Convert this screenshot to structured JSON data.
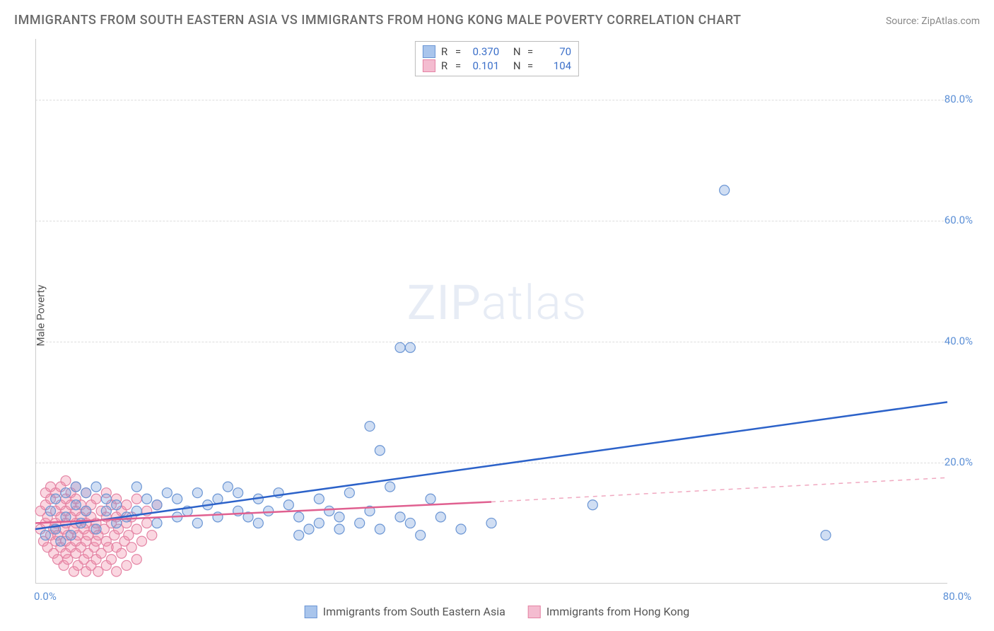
{
  "title": "IMMIGRANTS FROM SOUTH EASTERN ASIA VS IMMIGRANTS FROM HONG KONG MALE POVERTY CORRELATION CHART",
  "source_label": "Source: ZipAtlas.com",
  "y_axis_label": "Male Poverty",
  "watermark_zip": "ZIP",
  "watermark_atlas": "atlas",
  "chart": {
    "type": "scatter",
    "background_color": "#ffffff",
    "grid_color": "#dddddd",
    "axis_color": "#cccccc",
    "tick_color": "#5b8fd6",
    "xlim": [
      0,
      90
    ],
    "ylim": [
      0,
      90
    ],
    "y_ticks": [
      20,
      40,
      60,
      80
    ],
    "y_tick_labels": [
      "20.0%",
      "40.0%",
      "60.0%",
      "80.0%"
    ],
    "x_tick_left": "0.0%",
    "x_tick_right": "80.0%",
    "marker_radius": 7,
    "marker_stroke_width": 1.2,
    "trend_line_width": 2.5,
    "series": [
      {
        "key": "sea",
        "name": "Immigrants from South Eastern Asia",
        "fill": "rgba(120, 160, 220, 0.35)",
        "stroke": "#6a95d4",
        "swatch_fill": "#a9c5ec",
        "swatch_border": "#6a95d4",
        "r_value": "0.370",
        "n_value": "70",
        "trend": {
          "x1": 0,
          "y1": 9,
          "x2": 90,
          "y2": 30,
          "color": "#2c62c9",
          "dash": "none"
        },
        "points": [
          [
            1,
            8
          ],
          [
            1.5,
            12
          ],
          [
            2,
            9
          ],
          [
            2,
            14
          ],
          [
            2.5,
            7
          ],
          [
            3,
            11
          ],
          [
            3,
            15
          ],
          [
            3.5,
            8
          ],
          [
            4,
            13
          ],
          [
            4,
            16
          ],
          [
            4.5,
            10
          ],
          [
            5,
            12
          ],
          [
            5,
            15
          ],
          [
            6,
            9
          ],
          [
            6,
            16
          ],
          [
            7,
            12
          ],
          [
            7,
            14
          ],
          [
            8,
            10
          ],
          [
            8,
            13
          ],
          [
            9,
            11
          ],
          [
            10,
            12
          ],
          [
            10,
            16
          ],
          [
            11,
            14
          ],
          [
            12,
            10
          ],
          [
            12,
            13
          ],
          [
            13,
            15
          ],
          [
            14,
            11
          ],
          [
            14,
            14
          ],
          [
            15,
            12
          ],
          [
            16,
            10
          ],
          [
            16,
            15
          ],
          [
            17,
            13
          ],
          [
            18,
            11
          ],
          [
            18,
            14
          ],
          [
            19,
            16
          ],
          [
            20,
            12
          ],
          [
            20,
            15
          ],
          [
            21,
            11
          ],
          [
            22,
            10
          ],
          [
            22,
            14
          ],
          [
            23,
            12
          ],
          [
            24,
            15
          ],
          [
            25,
            13
          ],
          [
            26,
            8
          ],
          [
            26,
            11
          ],
          [
            27,
            9
          ],
          [
            28,
            14
          ],
          [
            28,
            10
          ],
          [
            29,
            12
          ],
          [
            30,
            9
          ],
          [
            30,
            11
          ],
          [
            31,
            15
          ],
          [
            32,
            10
          ],
          [
            33,
            26
          ],
          [
            33,
            12
          ],
          [
            34,
            22
          ],
          [
            34,
            9
          ],
          [
            35,
            16
          ],
          [
            36,
            11
          ],
          [
            36,
            39
          ],
          [
            37,
            39
          ],
          [
            37,
            10
          ],
          [
            38,
            8
          ],
          [
            39,
            14
          ],
          [
            40,
            11
          ],
          [
            42,
            9
          ],
          [
            45,
            10
          ],
          [
            55,
            13
          ],
          [
            68,
            65
          ],
          [
            78,
            8
          ]
        ]
      },
      {
        "key": "hk",
        "name": "Immigrants from Hong Kong",
        "fill": "rgba(240, 140, 170, 0.35)",
        "stroke": "#e484a4",
        "swatch_fill": "#f4bcd0",
        "swatch_border": "#e484a4",
        "r_value": "0.101",
        "n_value": "104",
        "trend_solid": {
          "x1": 0,
          "y1": 10,
          "x2": 45,
          "y2": 13.5,
          "color": "#e06090",
          "dash": "none"
        },
        "trend_dash": {
          "x1": 45,
          "y1": 13.5,
          "x2": 90,
          "y2": 17.5,
          "color": "#f0a8c0",
          "dash": "6,6"
        },
        "points": [
          [
            0.5,
            9
          ],
          [
            0.5,
            12
          ],
          [
            0.8,
            7
          ],
          [
            1,
            10
          ],
          [
            1,
            13
          ],
          [
            1,
            15
          ],
          [
            1.2,
            6
          ],
          [
            1.2,
            11
          ],
          [
            1.5,
            8
          ],
          [
            1.5,
            14
          ],
          [
            1.5,
            16
          ],
          [
            1.8,
            5
          ],
          [
            1.8,
            9
          ],
          [
            2,
            7
          ],
          [
            2,
            10
          ],
          [
            2,
            12
          ],
          [
            2,
            15
          ],
          [
            2.2,
            4
          ],
          [
            2.2,
            8
          ],
          [
            2.5,
            6
          ],
          [
            2.5,
            11
          ],
          [
            2.5,
            13
          ],
          [
            2.5,
            16
          ],
          [
            2.8,
            3
          ],
          [
            2.8,
            9
          ],
          [
            3,
            5
          ],
          [
            3,
            7
          ],
          [
            3,
            10
          ],
          [
            3,
            12
          ],
          [
            3,
            14
          ],
          [
            3,
            17
          ],
          [
            3.2,
            4
          ],
          [
            3.2,
            8
          ],
          [
            3.5,
            6
          ],
          [
            3.5,
            11
          ],
          [
            3.5,
            13
          ],
          [
            3.5,
            15
          ],
          [
            3.8,
            2
          ],
          [
            3.8,
            9
          ],
          [
            4,
            5
          ],
          [
            4,
            7
          ],
          [
            4,
            10
          ],
          [
            4,
            12
          ],
          [
            4,
            14
          ],
          [
            4,
            16
          ],
          [
            4.2,
            3
          ],
          [
            4.2,
            8
          ],
          [
            4.5,
            6
          ],
          [
            4.5,
            11
          ],
          [
            4.5,
            13
          ],
          [
            4.8,
            4
          ],
          [
            4.8,
            9
          ],
          [
            5,
            2
          ],
          [
            5,
            7
          ],
          [
            5,
            10
          ],
          [
            5,
            12
          ],
          [
            5,
            15
          ],
          [
            5.2,
            5
          ],
          [
            5.2,
            8
          ],
          [
            5.5,
            3
          ],
          [
            5.5,
            11
          ],
          [
            5.5,
            13
          ],
          [
            5.8,
            6
          ],
          [
            5.8,
            9
          ],
          [
            6,
            4
          ],
          [
            6,
            7
          ],
          [
            6,
            10
          ],
          [
            6,
            14
          ],
          [
            6.2,
            2
          ],
          [
            6.2,
            8
          ],
          [
            6.5,
            5
          ],
          [
            6.5,
            12
          ],
          [
            6.8,
            9
          ],
          [
            7,
            3
          ],
          [
            7,
            7
          ],
          [
            7,
            11
          ],
          [
            7,
            15
          ],
          [
            7.2,
            6
          ],
          [
            7.5,
            4
          ],
          [
            7.5,
            10
          ],
          [
            7.5,
            13
          ],
          [
            7.8,
            8
          ],
          [
            8,
            2
          ],
          [
            8,
            6
          ],
          [
            8,
            11
          ],
          [
            8,
            14
          ],
          [
            8.2,
            9
          ],
          [
            8.5,
            5
          ],
          [
            8.5,
            12
          ],
          [
            8.8,
            7
          ],
          [
            9,
            3
          ],
          [
            9,
            10
          ],
          [
            9,
            13
          ],
          [
            9.2,
            8
          ],
          [
            9.5,
            6
          ],
          [
            9.5,
            11
          ],
          [
            10,
            4
          ],
          [
            10,
            9
          ],
          [
            10,
            14
          ],
          [
            10.5,
            7
          ],
          [
            11,
            12
          ],
          [
            11,
            10
          ],
          [
            11.5,
            8
          ],
          [
            12,
            13
          ]
        ]
      }
    ]
  },
  "legend_top": {
    "r_label": "R",
    "n_label": "N",
    "eq": "="
  }
}
